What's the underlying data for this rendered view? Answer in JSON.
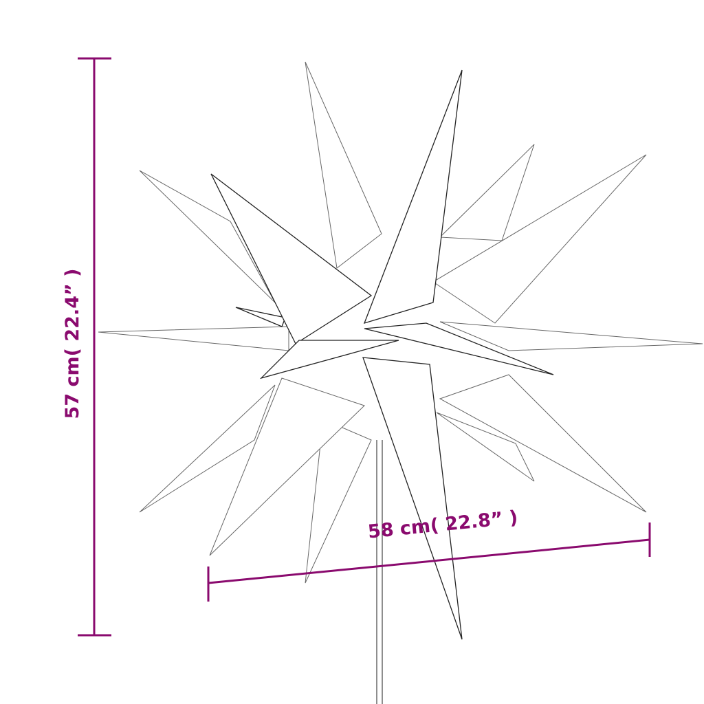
{
  "colors": {
    "dimension": "#8a0a6e",
    "outline": "#222222"
  },
  "dimensions": {
    "height_label": "57 cm( 22.4” )",
    "width_label": "58 cm( 22.8” )"
  }
}
